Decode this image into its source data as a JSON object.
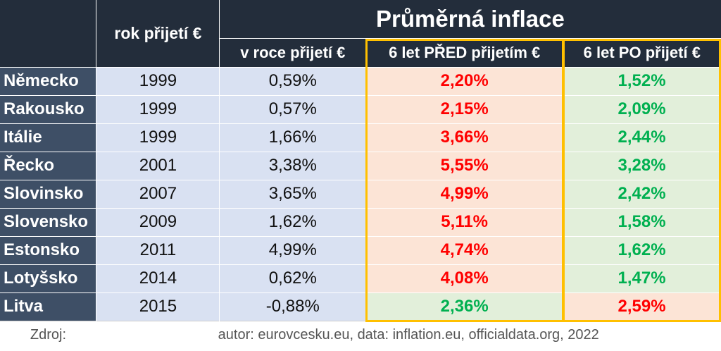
{
  "table": {
    "title": "Průměrná inflace",
    "col_year": "rok přijetí €",
    "col_in_year": "v roce přijetí €",
    "col_before": "6 let PŘED přijetím €",
    "col_after": "6 let PO přijetí €",
    "source_label": "Zdroj:",
    "source_text": "autor: eurovcesku.eu, data: inflation.eu, officialdata.org, 2022"
  },
  "colors": {
    "header_bg": "#232d3b",
    "country_bg": "#3e4f66",
    "cell_bg": "#d9e1f2",
    "red_text": "#ff0000",
    "red_bg": "#fce4d6",
    "green_text": "#00b050",
    "green_bg": "#e2efda",
    "highlight_border": "#ffc000"
  },
  "chart_data": {
    "type": "table",
    "title": "Průměrná inflace",
    "columns": [
      "",
      "rok přijetí €",
      "v roce přijetí €",
      "6 let PŘED přijetím €",
      "6 let PO přijetí €"
    ],
    "rows": [
      {
        "country": "Německo",
        "year": "1999",
        "in_year": "0,59%",
        "before": "2,20%",
        "after": "1,52%"
      },
      {
        "country": "Rakousko",
        "year": "1999",
        "in_year": "0,57%",
        "before": "2,15%",
        "after": "2,09%"
      },
      {
        "country": "Itálie",
        "year": "1999",
        "in_year": "1,66%",
        "before": "3,66%",
        "after": "2,44%"
      },
      {
        "country": "Řecko",
        "year": "2001",
        "in_year": "3,38%",
        "before": "5,55%",
        "after": "3,28%"
      },
      {
        "country": "Slovinsko",
        "year": "2007",
        "in_year": "3,65%",
        "before": "4,99%",
        "after": "2,42%"
      },
      {
        "country": "Slovensko",
        "year": "2009",
        "in_year": "1,62%",
        "before": "5,11%",
        "after": "1,58%"
      },
      {
        "country": "Estonsko",
        "year": "2011",
        "in_year": "4,99%",
        "before": "4,74%",
        "after": "1,62%"
      },
      {
        "country": "Lotyšsko",
        "year": "2014",
        "in_year": "0,62%",
        "before": "4,08%",
        "after": "1,47%"
      },
      {
        "country": "Litva",
        "year": "2015",
        "in_year": "-0,88%",
        "before": "2,36%",
        "after": "2,59%"
      }
    ]
  }
}
